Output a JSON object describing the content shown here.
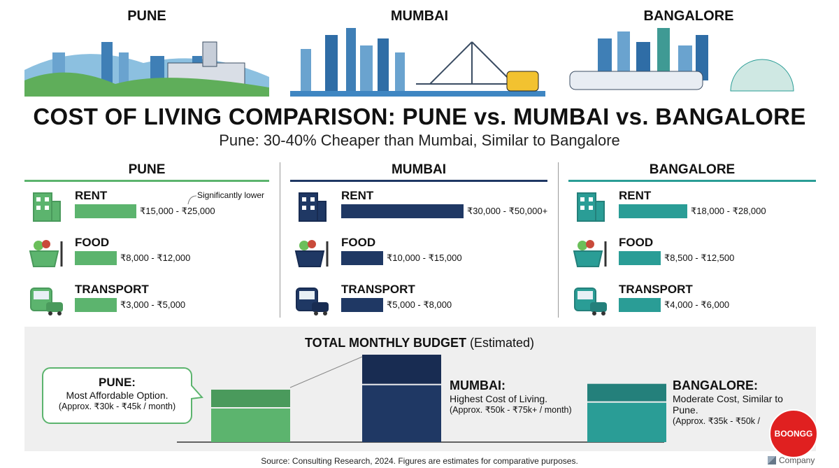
{
  "header": {
    "cities": [
      "PUNE",
      "MUMBAI",
      "BANGALORE"
    ],
    "title": "COST OF LIVING COMPARISON: PUNE vs. MUMBAI vs. BANGALORE",
    "subtitle": "Pune: 30-40% Cheaper than Mumbai, Similar to Bangalore"
  },
  "colors": {
    "pune": "#5cb46e",
    "pune_dark": "#4a9a5c",
    "mumbai": "#1f3864",
    "mumbai_dark": "#182c52",
    "bangalore": "#2a9d96",
    "bangalore_dark": "#24807b"
  },
  "columns": [
    {
      "name": "PUNE",
      "note": "Significantly lower",
      "items": [
        {
          "label": "RENT",
          "icon": "building-icon",
          "value": "₹15,000 - ₹25,000"
        },
        {
          "label": "FOOD",
          "icon": "grocery-basket-icon",
          "value": "₹8,000 - ₹12,000"
        },
        {
          "label": "TRANSPORT",
          "icon": "bus-car-icon",
          "value": "₹3,000 - ₹5,000"
        }
      ]
    },
    {
      "name": "MUMBAI",
      "items": [
        {
          "label": "RENT",
          "icon": "building-icon",
          "value": "₹30,000 - ₹50,000+"
        },
        {
          "label": "FOOD",
          "icon": "grocery-basket-icon",
          "value": "₹10,000 - ₹15,000"
        },
        {
          "label": "TRANSPORT",
          "icon": "bus-car-icon",
          "value": "₹5,000 - ₹8,000"
        }
      ]
    },
    {
      "name": "BANGALORE",
      "items": [
        {
          "label": "RENT",
          "icon": "building-icon",
          "value": "₹18,000 - ₹28,000"
        },
        {
          "label": "FOOD",
          "icon": "grocery-basket-icon",
          "value": "₹8,500 - ₹12,500"
        },
        {
          "label": "TRANSPORT",
          "icon": "bus-car-icon",
          "value": "₹4,000 - ₹6,000"
        }
      ]
    }
  ],
  "budget": {
    "title": "TOTAL MONTHLY BUDGET",
    "title_suffix": "(Estimated)",
    "pune": {
      "title": "PUNE:",
      "desc": "Most Affordable Option.",
      "range": "(Approx. ₹30k - ₹45k / month)"
    },
    "mumbai": {
      "title": "MUMBAI:",
      "desc": "Highest Cost of Living.",
      "range": "(Approx. ₹50k - ₹75k+ / month)"
    },
    "bangalore": {
      "title": "BANGALORE:",
      "desc": "Moderate Cost, Similar to Pune.",
      "range": "(Approx. ₹35k - ₹50k /"
    }
  },
  "footer": {
    "source": "Source: Consulting Research, 2024. Figures are estimates for comparative purposes.",
    "company": "Company",
    "logo_text": "BOONGG"
  },
  "chart_data": [
    {
      "type": "bar",
      "orientation": "horizontal",
      "categories": [
        "RENT",
        "FOOD",
        "TRANSPORT"
      ],
      "unit": "INR / month",
      "series": [
        {
          "name": "PUNE",
          "values": [
            [
              15000,
              25000
            ],
            [
              8000,
              12000
            ],
            [
              3000,
              5000
            ]
          ]
        },
        {
          "name": "MUMBAI",
          "values": [
            [
              30000,
              50000
            ],
            [
              10000,
              15000
            ],
            [
              5000,
              8000
            ]
          ]
        },
        {
          "name": "BANGALORE",
          "values": [
            [
              18000,
              28000
            ],
            [
              8500,
              12500
            ],
            [
              4000,
              6000
            ]
          ]
        }
      ]
    },
    {
      "type": "bar",
      "title": "TOTAL MONTHLY BUDGET (Estimated)",
      "categories": [
        "PUNE",
        "MUMBAI",
        "BANGALORE"
      ],
      "unit": "INR / month",
      "values": [
        [
          30000,
          45000
        ],
        [
          50000,
          75000
        ],
        [
          35000,
          50000
        ]
      ]
    }
  ]
}
